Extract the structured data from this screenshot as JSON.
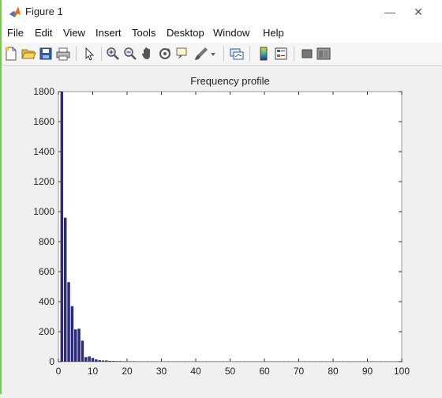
{
  "window": {
    "title": "Figure 1"
  },
  "menu": [
    "File",
    "Edit",
    "View",
    "Insert",
    "Tools",
    "Desktop",
    "Window",
    "Help"
  ],
  "toolbar": {
    "buttons": [
      "new-figure",
      "open-file",
      "save-figure",
      "print-figure",
      "edit-plot",
      "zoom-in",
      "zoom-out",
      "pan",
      "rotate-3d",
      "data-cursor",
      "brush",
      "link-plot",
      "insert-colorbar",
      "insert-legend",
      "hide-plot-tools",
      "show-plot-tools"
    ]
  },
  "colors": {
    "bar": "#2b2b7a",
    "accent": "#78c850"
  },
  "chart_data": {
    "type": "bar",
    "title": "Frequency profile",
    "xlabel": "",
    "ylabel": "",
    "xlim": [
      0,
      100
    ],
    "ylim": [
      0,
      1800
    ],
    "xticks": [
      0,
      10,
      20,
      30,
      40,
      50,
      60,
      70,
      80,
      90,
      100
    ],
    "yticks": [
      0,
      200,
      400,
      600,
      800,
      1000,
      1200,
      1400,
      1600,
      1800
    ],
    "x": [
      1,
      2,
      3,
      4,
      5,
      6,
      7,
      8,
      9,
      10,
      11,
      12,
      13,
      14,
      15,
      16,
      17,
      18,
      19,
      20,
      21,
      22,
      23,
      24,
      25,
      26,
      27,
      28,
      29,
      30,
      31,
      32,
      33,
      34,
      35,
      36,
      37,
      38,
      39,
      40,
      41,
      42,
      43,
      44,
      45,
      46,
      47,
      48,
      49,
      50,
      51,
      52,
      53,
      54,
      55,
      56,
      57,
      58,
      59,
      60,
      61,
      62,
      63,
      64,
      65,
      66,
      67,
      68,
      69,
      70,
      71,
      72,
      73,
      74,
      75,
      76,
      77,
      78,
      79,
      80,
      81,
      82,
      83,
      84,
      85,
      86,
      87,
      88,
      89,
      90,
      91,
      92,
      93,
      94,
      95,
      96,
      97,
      98,
      99,
      100
    ],
    "values": [
      1800,
      960,
      530,
      370,
      215,
      220,
      140,
      30,
      35,
      25,
      15,
      10,
      8,
      8,
      5,
      5,
      4,
      4,
      3,
      3,
      3,
      3,
      2,
      2,
      2,
      2,
      2,
      2,
      2,
      2,
      2,
      2,
      2,
      2,
      2,
      2,
      2,
      2,
      2,
      2,
      2,
      2,
      2,
      2,
      2,
      2,
      2,
      2,
      2,
      2,
      2,
      2,
      2,
      2,
      2,
      2,
      2,
      2,
      2,
      2,
      2,
      2,
      2,
      2,
      2,
      2,
      2,
      2,
      2,
      2,
      2,
      2,
      2,
      2,
      2,
      2,
      2,
      2,
      2,
      2,
      2,
      2,
      2,
      2,
      2,
      2,
      2,
      2,
      2,
      2,
      2,
      2,
      2,
      2,
      2,
      2,
      2,
      2,
      2,
      2
    ]
  }
}
